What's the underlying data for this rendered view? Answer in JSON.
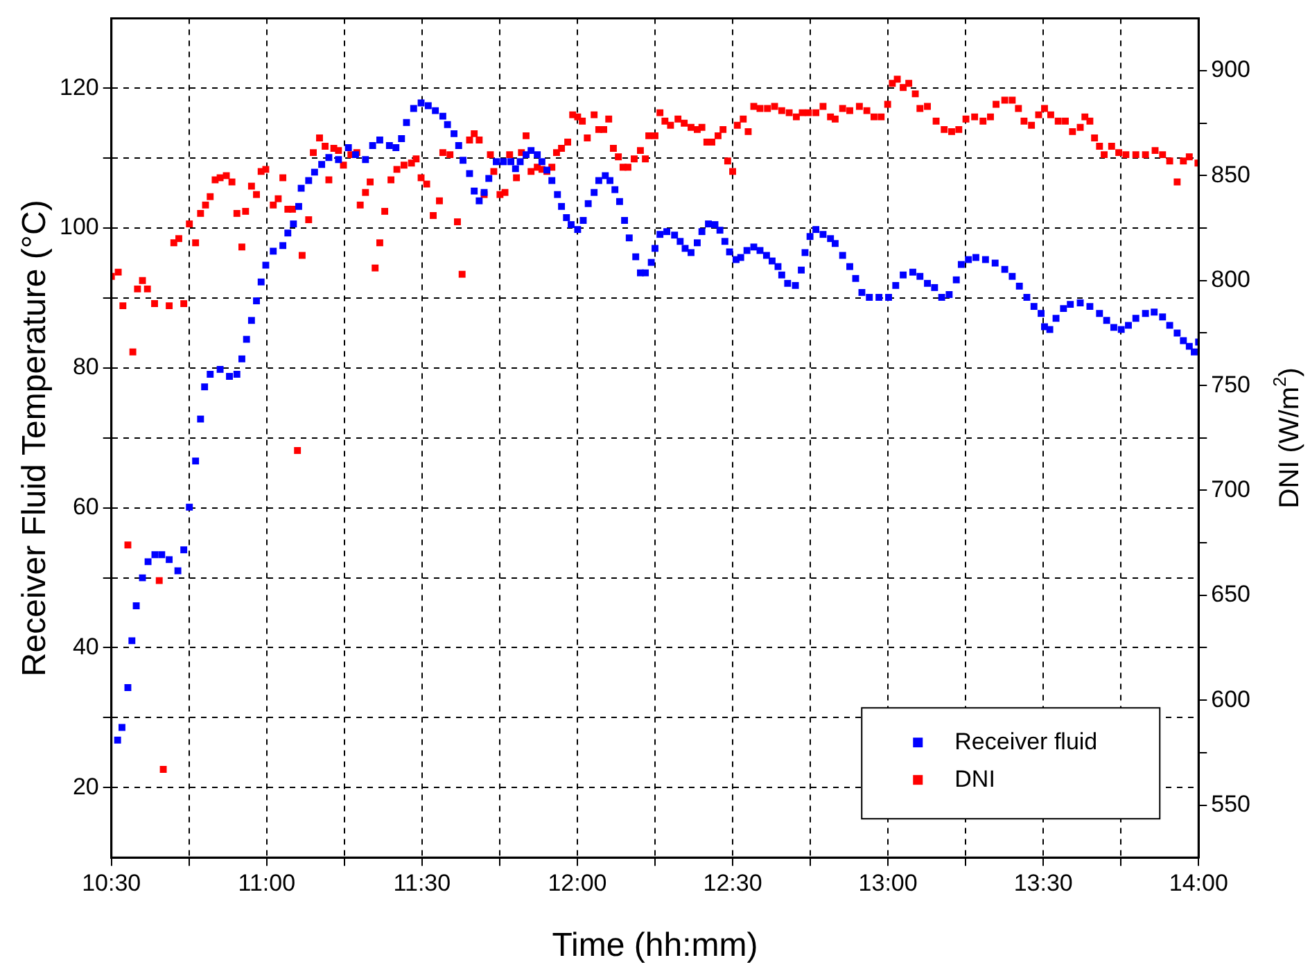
{
  "chart_data": {
    "type": "scatter",
    "xlabel": "Time (hh:mm)",
    "ylabel": "Receiver Fluid Temperature (°C)",
    "y2label": "DNI (W/m$^{2}$)",
    "xlim": [
      10.5,
      14
    ],
    "xticks": [
      {
        "value": 10.5,
        "label": "10:30"
      },
      {
        "value": 10.75,
        "label": null
      },
      {
        "value": 11,
        "label": "11:00"
      },
      {
        "value": 11.25,
        "label": null
      },
      {
        "value": 11.5,
        "label": "11:30"
      },
      {
        "value": 11.75,
        "label": null
      },
      {
        "value": 12,
        "label": "12:00"
      },
      {
        "value": 12.25,
        "label": null
      },
      {
        "value": 12.5,
        "label": "12:30"
      },
      {
        "value": 12.75,
        "label": null
      },
      {
        "value": 13,
        "label": "13:00"
      },
      {
        "value": 13.25,
        "label": null
      },
      {
        "value": 13.5,
        "label": "13:30"
      },
      {
        "value": 13.75,
        "label": null
      },
      {
        "value": 14,
        "label": "14:00"
      }
    ],
    "ylim": [
      10,
      130
    ],
    "yticks": [
      20,
      {
        "value": 30,
        "label": null
      },
      40,
      {
        "value": 50,
        "label": null
      },
      60,
      {
        "value": 70,
        "label": null
      },
      80,
      {
        "value": 90,
        "label": null
      },
      100,
      {
        "value": 110,
        "label": null
      },
      120
    ],
    "y2lim": [
      525,
      925
    ],
    "y2ticks": [
      550,
      {
        "value": 575,
        "label": null
      },
      600,
      {
        "value": 625,
        "label": null
      },
      650,
      {
        "value": 675,
        "label": null
      },
      700,
      {
        "value": 725,
        "label": null
      },
      750,
      {
        "value": 775,
        "label": null
      },
      800,
      {
        "value": 825,
        "label": null
      },
      850,
      {
        "value": 875,
        "label": null
      },
      900
    ],
    "grid": true,
    "legend": "bottom right",
    "marker": "square",
    "series": [
      {
        "name": "Receiver fluid",
        "color": "#0000ff",
        "x": [
          10.52,
          10.534,
          10.553,
          10.566,
          10.58,
          10.6,
          10.618,
          10.64,
          10.662,
          10.686,
          10.714,
          10.733,
          10.751,
          10.771,
          10.787,
          10.8,
          10.818,
          10.85,
          10.88,
          10.904,
          10.92,
          10.935,
          10.951,
          10.967,
          10.982,
          10.997,
          11.021,
          11.052,
          11.068,
          11.086,
          11.103,
          11.111,
          11.135,
          11.154,
          11.177,
          11.2,
          11.231,
          11.263,
          11.286,
          11.318,
          11.341,
          11.364,
          11.395,
          11.416,
          11.434,
          11.45,
          11.473,
          11.497,
          11.52,
          11.543,
          11.567,
          11.582,
          11.603,
          11.618,
          11.632,
          11.653,
          11.668,
          11.684,
          11.7,
          11.715,
          11.739,
          11.762,
          11.786,
          11.801,
          11.816,
          11.835,
          11.851,
          11.871,
          11.886,
          11.902,
          11.918,
          11.936,
          11.949,
          11.965,
          11.98,
          12.001,
          12.019,
          12.035,
          12.054,
          12.069,
          12.09,
          12.105,
          12.121,
          12.136,
          12.152,
          12.167,
          12.188,
          12.203,
          12.219,
          12.238,
          12.25,
          12.266,
          12.288,
          12.313,
          12.331,
          12.347,
          12.366,
          12.386,
          12.401,
          12.422,
          12.443,
          12.459,
          12.475,
          12.49,
          12.511,
          12.526,
          12.546,
          12.568,
          12.588,
          12.609,
          12.627,
          12.646,
          12.658,
          12.677,
          12.702,
          12.721,
          12.733,
          12.749,
          12.768,
          12.791,
          12.815,
          12.83,
          12.854,
          12.877,
          12.896,
          12.916,
          12.94,
          12.971,
          13.002,
          13.025,
          13.049,
          13.08,
          13.103,
          13.127,
          13.15,
          13.173,
          13.197,
          13.22,
          13.236,
          13.259,
          13.283,
          13.314,
          13.345,
          13.376,
          13.4,
          13.423,
          13.447,
          13.47,
          13.493,
          13.504,
          13.521,
          13.541,
          13.565,
          13.587,
          13.619,
          13.65,
          13.681,
          13.704,
          13.727,
          13.751,
          13.774,
          13.798,
          13.829,
          13.857,
          13.884,
          13.907,
          13.931,
          13.951,
          13.97,
          13.986,
          14.0
        ],
        "values": [
          26.8,
          28.6,
          34.3,
          41,
          46,
          50,
          52.3,
          53.3,
          53.3,
          52.6,
          51,
          54,
          60.1,
          66.7,
          72.7,
          77.3,
          79.1,
          79.8,
          78.8,
          79.1,
          81.3,
          84.1,
          86.8,
          89.6,
          92.3,
          94.7,
          96.7,
          97.5,
          99.3,
          100.6,
          103.1,
          105.7,
          106.8,
          108,
          109.1,
          110.1,
          109.8,
          111.5,
          110.5,
          109.8,
          111.8,
          112.6,
          111.8,
          111.5,
          112.8,
          115.1,
          117.1,
          117.9,
          117.5,
          116.8,
          116,
          114.8,
          113.5,
          111.8,
          109.7,
          107.8,
          105.3,
          103.9,
          105.1,
          107.1,
          109.5,
          109.5,
          109.5,
          108.5,
          109.5,
          110.5,
          111.1,
          110.5,
          109.5,
          108.3,
          106.8,
          104.8,
          103.1,
          101.5,
          100.5,
          99.8,
          101.1,
          103.5,
          105.1,
          106.8,
          107.5,
          106.8,
          105.5,
          103.8,
          101.1,
          98.6,
          95.9,
          93.6,
          93.6,
          95.1,
          97.1,
          99.1,
          99.5,
          99,
          98.1,
          97.1,
          96.5,
          97.9,
          99.5,
          100.6,
          100.5,
          99.7,
          98.1,
          96.6,
          95.5,
          95.8,
          96.8,
          97.3,
          96.8,
          96.1,
          95.3,
          94.5,
          93.3,
          92.1,
          91.8,
          94,
          96.5,
          98.8,
          99.8,
          99.1,
          98.5,
          97.8,
          96.1,
          94.5,
          92.8,
          90.8,
          90.1,
          90.1,
          90.1,
          91.8,
          93.3,
          93.7,
          93.1,
          92.1,
          91.5,
          90.1,
          90.5,
          92.6,
          94.8,
          95.5,
          95.8,
          95.5,
          95,
          94.1,
          93.1,
          91.7,
          90.1,
          88.8,
          87.8,
          85.9,
          85.5,
          87.1,
          88.5,
          89.1,
          89.3,
          88.8,
          87.8,
          86.8,
          85.8,
          85.5,
          86.1,
          87.1,
          87.8,
          88,
          87.3,
          86.1,
          85,
          83.9,
          83.1,
          82.3,
          83.7
        ]
      },
      {
        "name": "DNI",
        "color": "#ff0000",
        "axis": "y2",
        "x": [
          10.5,
          10.522,
          10.537,
          10.553,
          10.569,
          10.584,
          10.6,
          10.616,
          10.639,
          10.654,
          10.667,
          10.686,
          10.701,
          10.717,
          10.733,
          10.751,
          10.771,
          10.787,
          10.803,
          10.818,
          10.834,
          10.85,
          10.87,
          10.888,
          10.904,
          10.92,
          10.932,
          10.951,
          10.967,
          10.982,
          10.997,
          11.021,
          11.037,
          11.052,
          11.068,
          11.083,
          11.099,
          11.114,
          11.135,
          11.15,
          11.17,
          11.188,
          11.2,
          11.216,
          11.231,
          11.247,
          11.271,
          11.29,
          11.301,
          11.318,
          11.333,
          11.349,
          11.364,
          11.38,
          11.4,
          11.419,
          11.442,
          11.466,
          11.481,
          11.497,
          11.515,
          11.536,
          11.556,
          11.567,
          11.59,
          11.614,
          11.629,
          11.653,
          11.668,
          11.684,
          11.7,
          11.72,
          11.731,
          11.751,
          11.767,
          11.782,
          11.804,
          11.82,
          11.835,
          11.851,
          11.871,
          11.886,
          11.902,
          11.918,
          11.933,
          11.949,
          11.969,
          11.985,
          12.001,
          12.016,
          12.032,
          12.054,
          12.069,
          12.085,
          12.101,
          12.116,
          12.132,
          12.147,
          12.163,
          12.183,
          12.203,
          12.219,
          12.23,
          12.25,
          12.266,
          12.282,
          12.3,
          12.324,
          12.344,
          12.366,
          12.386,
          12.401,
          12.417,
          12.433,
          12.453,
          12.469,
          12.484,
          12.5,
          12.515,
          12.534,
          12.55,
          12.568,
          12.588,
          12.612,
          12.635,
          12.658,
          12.682,
          12.705,
          12.724,
          12.744,
          12.768,
          12.791,
          12.815,
          12.83,
          12.854,
          12.877,
          12.908,
          12.932,
          12.955,
          12.978,
          12.999,
          13.014,
          13.03,
          13.049,
          13.067,
          13.088,
          13.103,
          13.127,
          13.155,
          13.181,
          13.205,
          13.228,
          13.251,
          13.279,
          13.306,
          13.33,
          13.348,
          13.376,
          13.4,
          13.42,
          13.438,
          13.462,
          13.485,
          13.504,
          13.524,
          13.548,
          13.571,
          13.594,
          13.619,
          13.634,
          13.65,
          13.665,
          13.681,
          13.696,
          13.72,
          13.743,
          13.766,
          13.798,
          13.829,
          13.86,
          13.884,
          13.907,
          13.931,
          13.951,
          13.97,
          13.998
        ],
        "values": [
          802,
          804,
          788,
          674,
          766,
          796,
          800,
          796,
          789,
          657,
          567,
          788,
          818,
          820,
          789,
          827,
          818,
          832,
          836,
          840,
          848,
          849,
          850,
          847,
          832,
          816,
          833,
          845,
          841,
          852,
          853,
          836,
          839,
          849,
          834,
          834,
          719,
          812,
          829,
          861,
          868,
          864,
          848,
          863,
          862,
          855,
          860,
          861,
          836,
          842,
          847,
          806,
          818,
          833,
          848,
          853,
          855,
          856,
          858,
          849,
          846,
          831,
          838,
          861,
          860,
          828,
          803,
          867,
          870,
          867,
          841,
          860,
          852,
          841,
          842,
          860,
          849,
          861,
          869,
          852,
          854,
          853,
          852,
          854,
          861,
          863,
          866,
          879,
          878,
          876,
          868,
          879,
          872,
          872,
          877,
          863,
          859,
          854,
          854,
          858,
          862,
          858,
          869,
          869,
          880,
          876,
          874,
          877,
          875,
          873,
          872,
          873,
          866,
          866,
          869,
          872,
          857,
          852,
          874,
          877,
          871,
          883,
          882,
          882,
          883,
          881,
          880,
          878,
          880,
          880,
          880,
          883,
          878,
          877,
          882,
          881,
          883,
          881,
          878,
          878,
          884,
          894,
          896,
          892,
          894,
          889,
          882,
          883,
          876,
          872,
          871,
          872,
          877,
          878,
          876,
          878,
          884,
          886,
          886,
          882,
          876,
          874,
          879,
          882,
          879,
          876,
          876,
          871,
          873,
          878,
          876,
          868,
          864,
          860,
          864,
          861,
          860,
          860,
          860,
          862,
          860,
          857,
          847,
          857,
          859,
          856
        ]
      }
    ]
  }
}
